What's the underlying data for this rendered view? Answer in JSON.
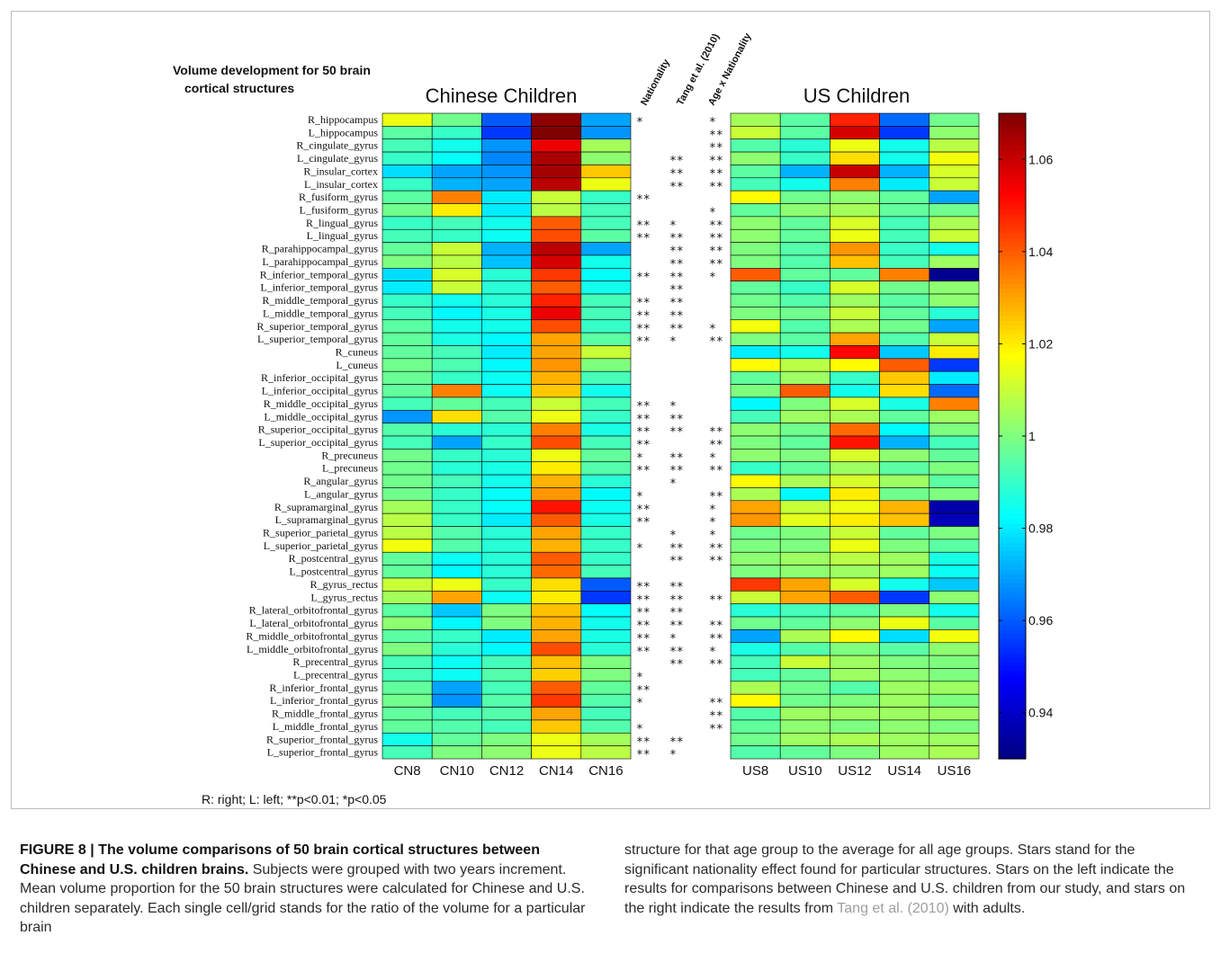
{
  "figure": {
    "label": "FIGURE 8 |",
    "title": "The volume comparisons of 50 brain cortical structures between Chinese and U.S. children brains.",
    "caption_left": "Subjects were grouped with two years increment. Mean volume proportion for the 50 brain structures were calculated for Chinese and U.S. children separately. Each single cell/grid stands for the ratio of the volume for a particular brain",
    "caption_right_a": "structure for that age group to the average for all age groups. Stars stand for the significant nationality effect found for particular structures. Stars on the left indicate the results for comparisons between Chinese and U.S. children from our study, and stars on the right indicate the results from",
    "caption_ref": "Tang et al. (2010)",
    "caption_right_b": "with adults."
  },
  "chart_data": {
    "type": "heatmap",
    "title_line1": "Volume development for 50 brain",
    "title_line2": "cortical structures",
    "left_panel_title": "Chinese Children",
    "right_panel_title": "US Children",
    "footnote": "R: right; L: left; **p<0.01; *p<0.05",
    "colormap": "jet",
    "colorbar_range": [
      0.93,
      1.07
    ],
    "colorbar_ticks": [
      "1.06",
      "1.04",
      "1.02",
      "1",
      "0.98",
      "0.96",
      "0.94"
    ],
    "colorbar_tick_values": [
      1.06,
      1.04,
      1.02,
      1.0,
      0.98,
      0.96,
      0.94
    ],
    "cn_columns": [
      "CN8",
      "CN10",
      "CN12",
      "CN14",
      "CN16"
    ],
    "us_columns": [
      "US8",
      "US10",
      "US12",
      "US14",
      "US16"
    ],
    "star_columns": [
      "Nationality",
      "Tang et al. (2010)",
      "Age x Nationality"
    ],
    "rows": [
      "R_hippocampus",
      "L_hippocampus",
      "R_cingulate_gyrus",
      "L_cingulate_gyrus",
      "R_insular_cortex",
      "L_insular_cortex",
      "R_fusiform_gyrus",
      "L_fusiform_gyrus",
      "R_lingual_gyrus",
      "L_lingual_gyrus",
      "R_parahippocampal_gyrus",
      "L_parahippocampal_gyrus",
      "R_inferior_temporal_gyrus",
      "L_inferior_temporal_gyrus",
      "R_middle_temporal_gyrus",
      "L_middle_temporal_gyrus",
      "R_superior_temporal_gyrus",
      "L_superior_temporal_gyrus",
      "R_cuneus",
      "L_cuneus",
      "R_inferior_occipital_gyrus",
      "L_inferior_occipital_gyrus",
      "R_middle_occipital_gyrus",
      "L_middle_occipital_gyrus",
      "R_superior_occipital_gyrus",
      "L_superior_occipital_gyrus",
      "R_precuneus",
      "L_precuneus",
      "R_angular_gyrus",
      "L_angular_gyrus",
      "R_supramarginal_gyrus",
      "L_supramarginal_gyrus",
      "R_superior_parietal_gyrus",
      "L_superior_parietal_gyrus",
      "R_postcentral_gyrus",
      "L_postcentral_gyrus",
      "R_gyrus_rectus",
      "L_gyrus_rectus",
      "R_lateral_orbitofrontal_gyrus",
      "L_lateral_orbitofrontal_gyrus",
      "R_middle_orbitofrontal_gyrus",
      "L_middle_orbitofrontal_gyrus",
      "R_precentral_gyrus",
      "L_precentral_gyrus",
      "R_inferior_frontal_gyrus",
      "L_inferior_frontal_gyrus",
      "R_middle_frontal_gyrus",
      "L_middle_frontal_gyrus",
      "R_superior_frontal_gyrus",
      "L_superior_frontal_gyrus"
    ],
    "cn_values": [
      [
        1.015,
        0.998,
        0.96,
        1.068,
        0.97
      ],
      [
        0.995,
        0.99,
        0.955,
        1.07,
        0.968
      ],
      [
        0.992,
        0.985,
        0.968,
        1.055,
        1.005
      ],
      [
        0.99,
        0.983,
        0.966,
        1.064,
        1.002
      ],
      [
        0.978,
        0.97,
        0.968,
        1.065,
        1.025
      ],
      [
        0.99,
        0.972,
        0.97,
        1.062,
        1.015
      ],
      [
        0.995,
        1.035,
        0.98,
        1.01,
        0.99
      ],
      [
        0.998,
        1.02,
        0.98,
        1.008,
        0.992
      ],
      [
        0.99,
        0.992,
        0.985,
        1.04,
        0.992
      ],
      [
        0.992,
        0.99,
        0.984,
        1.042,
        0.995
      ],
      [
        0.996,
        1.01,
        0.972,
        1.062,
        0.97
      ],
      [
        1.0,
        1.008,
        0.974,
        1.058,
        0.985
      ],
      [
        0.978,
        1.012,
        0.988,
        1.045,
        0.983
      ],
      [
        0.98,
        1.01,
        0.988,
        1.04,
        0.985
      ],
      [
        0.99,
        0.985,
        0.988,
        1.048,
        0.992
      ],
      [
        0.992,
        0.982,
        0.986,
        1.055,
        0.992
      ],
      [
        0.995,
        0.985,
        0.985,
        1.042,
        0.99
      ],
      [
        0.996,
        0.986,
        0.982,
        1.03,
        0.995
      ],
      [
        0.996,
        0.992,
        0.98,
        1.03,
        1.01
      ],
      [
        0.998,
        0.993,
        0.982,
        1.032,
        1.0
      ],
      [
        0.997,
        0.99,
        0.984,
        1.028,
        0.992
      ],
      [
        0.996,
        1.035,
        0.984,
        1.025,
        0.985
      ],
      [
        0.992,
        0.996,
        0.992,
        1.01,
        0.992
      ],
      [
        0.968,
        1.022,
        0.994,
        1.015,
        0.99
      ],
      [
        0.994,
        0.988,
        0.988,
        1.035,
        0.986
      ],
      [
        0.992,
        0.97,
        0.99,
        1.042,
        0.992
      ],
      [
        0.998,
        0.99,
        0.988,
        1.015,
        0.996
      ],
      [
        0.998,
        0.988,
        0.986,
        1.02,
        0.994
      ],
      [
        0.998,
        0.992,
        0.985,
        1.028,
        0.988
      ],
      [
        0.998,
        0.99,
        0.983,
        1.032,
        0.982
      ],
      [
        1.005,
        0.99,
        0.983,
        1.05,
        0.984
      ],
      [
        1.008,
        0.99,
        0.98,
        1.04,
        0.986
      ],
      [
        1.008,
        0.994,
        0.988,
        1.03,
        0.99
      ],
      [
        1.016,
        0.994,
        0.988,
        1.028,
        0.99
      ],
      [
        0.996,
        0.984,
        0.988,
        1.04,
        0.99
      ],
      [
        0.996,
        0.982,
        0.988,
        1.038,
        0.992
      ],
      [
        1.01,
        1.015,
        0.99,
        1.022,
        0.96
      ],
      [
        1.005,
        1.03,
        0.984,
        1.02,
        0.955
      ],
      [
        0.995,
        0.975,
        1.0,
        1.026,
        0.983
      ],
      [
        1.002,
        0.982,
        1.0,
        1.028,
        0.985
      ],
      [
        0.995,
        0.99,
        0.98,
        1.03,
        0.986
      ],
      [
        1.0,
        0.988,
        0.982,
        1.042,
        0.988
      ],
      [
        0.992,
        0.984,
        0.992,
        1.026,
        1.0
      ],
      [
        0.992,
        0.984,
        0.994,
        1.024,
        1.0
      ],
      [
        0.996,
        0.97,
        0.992,
        1.04,
        0.996
      ],
      [
        0.998,
        0.968,
        0.994,
        1.045,
        0.994
      ],
      [
        0.996,
        0.992,
        0.994,
        1.03,
        0.992
      ],
      [
        0.996,
        0.994,
        0.992,
        1.025,
        0.994
      ],
      [
        0.985,
        0.996,
        1.0,
        1.015,
        1.005
      ],
      [
        0.992,
        1.0,
        1.002,
        1.015,
        1.008
      ]
    ],
    "us_values": [
      [
        1.005,
        0.995,
        1.048,
        0.962,
        0.998
      ],
      [
        1.01,
        0.995,
        1.058,
        0.955,
        1.002
      ],
      [
        0.994,
        0.988,
        1.015,
        0.985,
        1.008
      ],
      [
        1.002,
        0.99,
        1.022,
        0.985,
        1.016
      ],
      [
        0.995,
        0.972,
        1.06,
        0.972,
        1.012
      ],
      [
        0.992,
        0.985,
        1.035,
        0.98,
        1.01
      ],
      [
        1.018,
        0.998,
        1.002,
        0.996,
        0.97
      ],
      [
        0.996,
        1.002,
        1.005,
        0.996,
        0.998
      ],
      [
        1.002,
        0.996,
        1.012,
        0.992,
        1.006
      ],
      [
        1.002,
        0.996,
        1.015,
        0.992,
        1.01
      ],
      [
        1.0,
        0.994,
        1.032,
        0.99,
        0.985
      ],
      [
        1.0,
        0.994,
        1.026,
        0.992,
        1.004
      ],
      [
        1.04,
        0.996,
        0.996,
        1.035,
        0.932
      ],
      [
        0.996,
        0.99,
        1.012,
        0.998,
        1.002
      ],
      [
        0.998,
        0.994,
        1.004,
        0.995,
        1.002
      ],
      [
        1.0,
        0.998,
        1.01,
        0.996,
        0.988
      ],
      [
        1.016,
        0.994,
        1.006,
        0.998,
        0.97
      ],
      [
        1.0,
        0.995,
        1.03,
        0.994,
        1.01
      ],
      [
        0.98,
        0.985,
        1.052,
        0.975,
        1.02
      ],
      [
        1.018,
        1.008,
        1.018,
        1.04,
        0.955
      ],
      [
        0.996,
        1.004,
        0.99,
        1.025,
        0.98
      ],
      [
        1.0,
        1.04,
        0.985,
        1.022,
        0.962
      ],
      [
        0.982,
        1.0,
        1.012,
        0.986,
        1.035
      ],
      [
        0.992,
        1.004,
        1.006,
        0.996,
        1.004
      ],
      [
        1.002,
        0.998,
        1.038,
        0.982,
        1.0
      ],
      [
        1.0,
        0.996,
        1.05,
        0.972,
        0.992
      ],
      [
        1.002,
        1.0,
        1.012,
        1.002,
        0.996
      ],
      [
        0.99,
        0.996,
        1.004,
        0.995,
        1.0
      ],
      [
        1.018,
        1.006,
        1.012,
        1.004,
        0.995
      ],
      [
        1.006,
        0.982,
        1.02,
        0.998,
        1.0
      ],
      [
        1.03,
        1.01,
        1.015,
        1.028,
        0.936
      ],
      [
        1.032,
        1.014,
        1.02,
        1.026,
        0.938
      ],
      [
        0.998,
        1.0,
        1.01,
        0.996,
        1.0
      ],
      [
        1.0,
        1.0,
        1.015,
        1.0,
        0.995
      ],
      [
        1.002,
        1.004,
        1.008,
        1.004,
        0.986
      ],
      [
        1.0,
        1.002,
        1.004,
        1.004,
        0.984
      ],
      [
        1.045,
        1.03,
        1.012,
        0.985,
        0.975
      ],
      [
        1.01,
        1.03,
        1.04,
        0.955,
        1.002
      ],
      [
        0.988,
        0.992,
        0.995,
        1.0,
        0.985
      ],
      [
        0.998,
        0.996,
        1.002,
        1.015,
        0.995
      ],
      [
        0.97,
        1.006,
        1.018,
        0.978,
        1.016
      ],
      [
        0.986,
        0.994,
        1.0,
        0.995,
        1.002
      ],
      [
        0.992,
        1.01,
        1.004,
        1.0,
        1.0
      ],
      [
        0.992,
        0.996,
        1.004,
        1.002,
        1.0
      ],
      [
        1.006,
        0.998,
        0.994,
        1.004,
        1.004
      ],
      [
        1.018,
        0.998,
        1.0,
        1.004,
        1.0
      ],
      [
        0.994,
        1.004,
        1.004,
        1.004,
        1.004
      ],
      [
        0.996,
        1.002,
        1.0,
        1.002,
        1.0
      ],
      [
        0.998,
        1.004,
        1.006,
        1.004,
        1.004
      ],
      [
        0.994,
        0.996,
        1.0,
        1.004,
        1.006
      ]
    ],
    "stars": [
      [
        "*",
        "",
        "*"
      ],
      [
        "",
        "",
        "**"
      ],
      [
        "",
        "",
        "**"
      ],
      [
        "",
        "**",
        "**"
      ],
      [
        "",
        "**",
        "**"
      ],
      [
        "",
        "**",
        "**"
      ],
      [
        "**",
        "",
        ""
      ],
      [
        "",
        "",
        "*"
      ],
      [
        "**",
        "*",
        "**"
      ],
      [
        "**",
        "**",
        "**"
      ],
      [
        "",
        "**",
        "**"
      ],
      [
        "",
        "**",
        "**"
      ],
      [
        "**",
        "**",
        "*"
      ],
      [
        "",
        "**",
        ""
      ],
      [
        "**",
        "**",
        ""
      ],
      [
        "**",
        "**",
        ""
      ],
      [
        "**",
        "**",
        "*"
      ],
      [
        "**",
        "*",
        "**"
      ],
      [
        "",
        "",
        ""
      ],
      [
        "",
        "",
        ""
      ],
      [
        "",
        "",
        ""
      ],
      [
        "",
        "",
        ""
      ],
      [
        "**",
        "*",
        ""
      ],
      [
        "**",
        "**",
        ""
      ],
      [
        "**",
        "**",
        "**"
      ],
      [
        "**",
        "",
        "**"
      ],
      [
        "*",
        "**",
        "*"
      ],
      [
        "**",
        "**",
        "**"
      ],
      [
        "",
        "*",
        ""
      ],
      [
        "*",
        "",
        "**"
      ],
      [
        "**",
        "",
        "*"
      ],
      [
        "**",
        "",
        "*"
      ],
      [
        "",
        "*",
        "*"
      ],
      [
        "*",
        "**",
        "**"
      ],
      [
        "",
        "**",
        "**"
      ],
      [
        "",
        "",
        ""
      ],
      [
        "**",
        "**",
        ""
      ],
      [
        "**",
        "**",
        "**"
      ],
      [
        "**",
        "**",
        ""
      ],
      [
        "**",
        "**",
        "**"
      ],
      [
        "**",
        "*",
        "**"
      ],
      [
        "**",
        "**",
        "*"
      ],
      [
        "",
        "**",
        "**"
      ],
      [
        "*",
        "",
        ""
      ],
      [
        "**",
        "",
        ""
      ],
      [
        "*",
        "",
        "**"
      ],
      [
        "",
        "",
        "**"
      ],
      [
        "*",
        "",
        "**"
      ],
      [
        "**",
        "**",
        ""
      ],
      [
        "**",
        "*",
        ""
      ]
    ]
  }
}
